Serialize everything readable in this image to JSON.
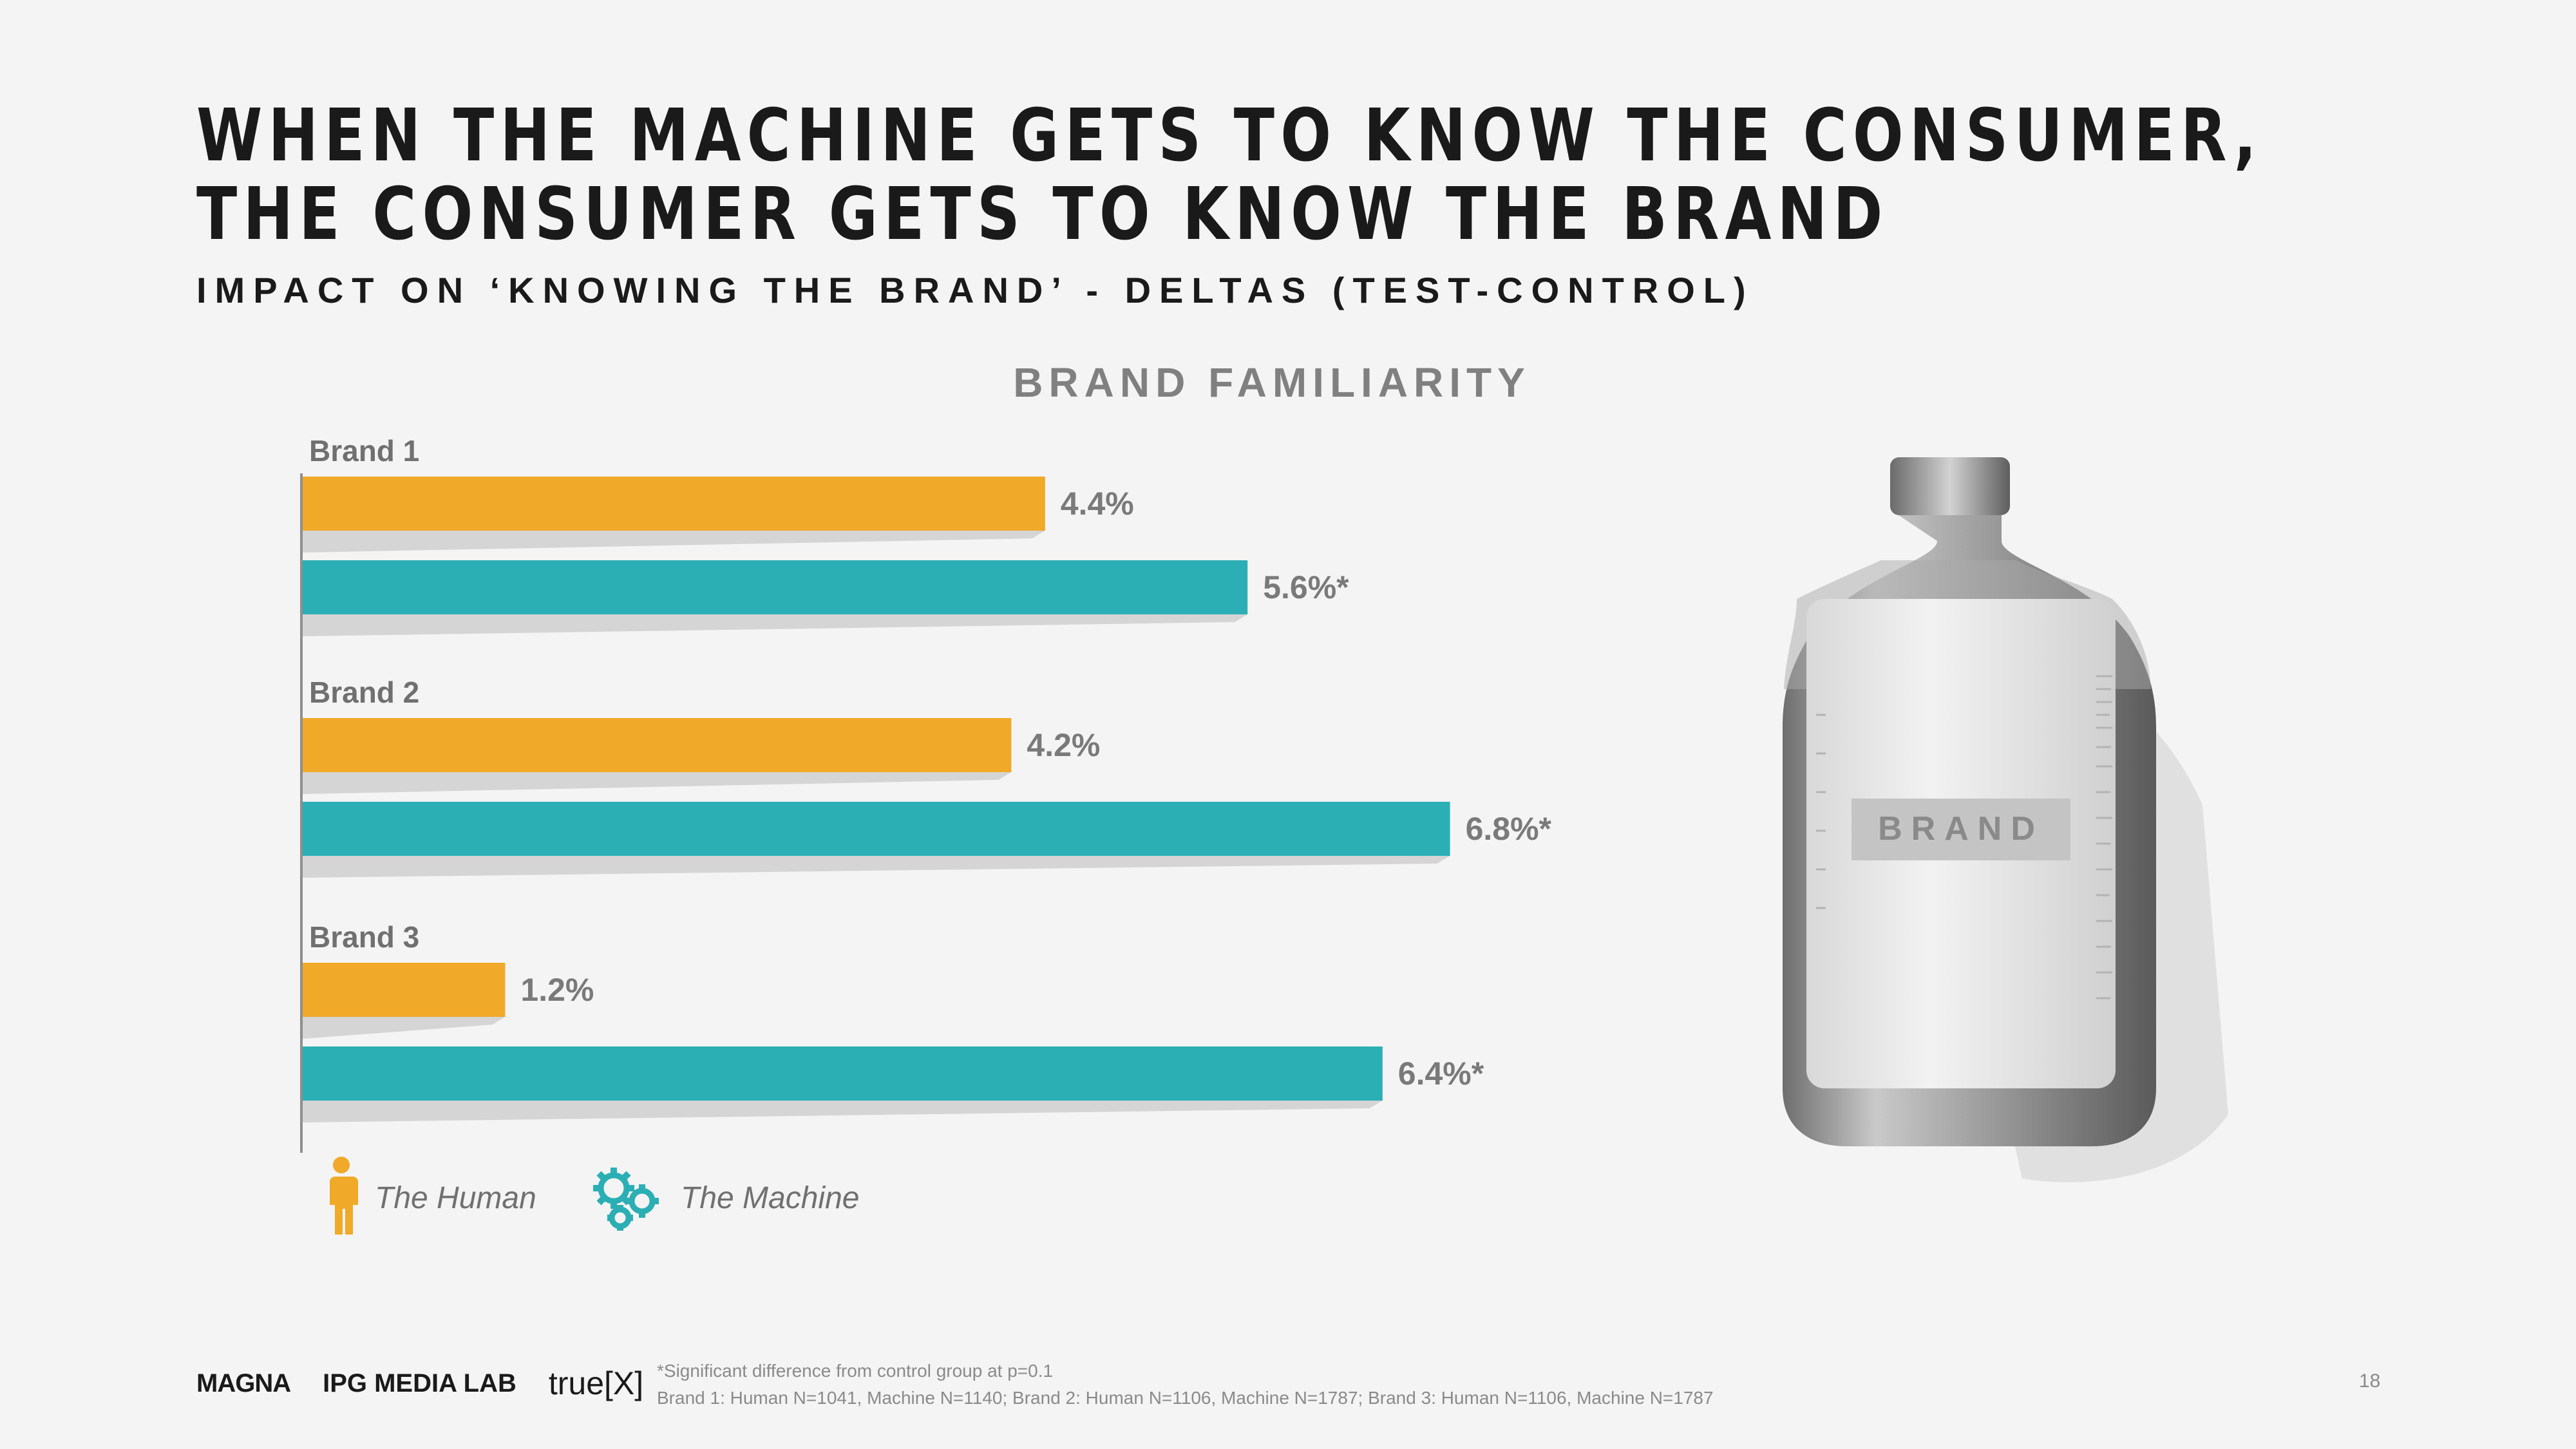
{
  "title": "WHEN THE MACHINE GETS TO KNOW THE CONSUMER, THE CONSUMER GETS TO KNOW THE BRAND",
  "subtitle": "IMPACT ON ‘KNOWING THE BRAND’ - DELTAS (TEST-CONTROL)",
  "colors": {
    "human": "#f0a928",
    "machine": "#2bafb4"
  },
  "chart_data": {
    "type": "bar",
    "orientation": "horizontal",
    "title": "BRAND FAMILIARITY",
    "categories": [
      "Brand 1",
      "Brand 2",
      "Brand 3"
    ],
    "series": [
      {
        "name": "The Human",
        "values": [
          4.4,
          4.2,
          1.2
        ],
        "labels": [
          "4.4%",
          "4.2%",
          "1.2%"
        ]
      },
      {
        "name": "The Machine",
        "values": [
          5.6,
          6.8,
          6.4
        ],
        "labels": [
          "5.6%*",
          "6.8%*",
          "6.4%*"
        ]
      }
    ],
    "xlim": [
      0,
      8
    ],
    "unit": "%",
    "grid": false
  },
  "legend": {
    "human": "The Human",
    "machine": "The Machine"
  },
  "bottle": {
    "label": "BRAND"
  },
  "footer": {
    "logos": [
      "MAGNA",
      "IPG MEDIA LAB",
      "true[X]"
    ],
    "footnote_1": "*Significant difference from control group at p=0.1",
    "footnote_2": "Brand 1: Human N=1041, Machine N=1140; Brand 2: Human N=1106, Machine N=1787; Brand 3: Human N=1106, Machine N=1787",
    "page_number": "18"
  }
}
